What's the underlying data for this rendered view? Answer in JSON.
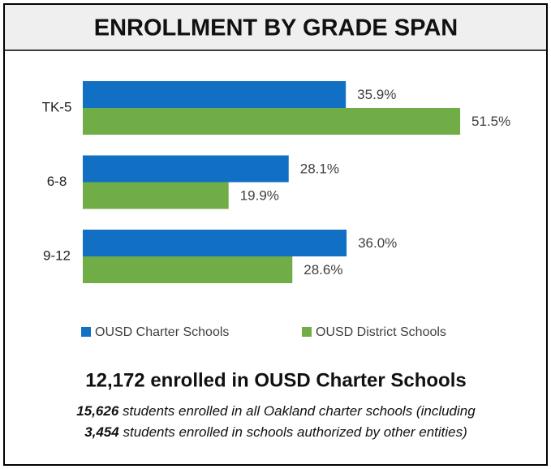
{
  "chart_data": {
    "type": "barh",
    "title": "ENROLLMENT BY GRADE SPAN",
    "categories": [
      "TK-5",
      "6-8",
      "9-12"
    ],
    "series": [
      {
        "name": "OUSD Charter Schools",
        "color": "#1170c4",
        "values": [
          35.9,
          28.1,
          36.0
        ],
        "value_labels": [
          "35.9%",
          "28.1%",
          "36.0%"
        ]
      },
      {
        "name": "OUSD District Schools",
        "color": "#70ad47",
        "values": [
          51.5,
          19.9,
          28.6
        ],
        "value_labels": [
          "51.5%",
          "19.9%",
          "28.6%"
        ]
      }
    ],
    "legend": "bottom",
    "headline": "12,172 enrolled in OUSD Charter Schools",
    "footnote": [
      {
        "emphasis": "15,626",
        "text": " students enrolled in all Oakland charter schools (including"
      },
      {
        "emphasis": "3,454",
        "text": " students enrolled in schools authorized by other entities)"
      }
    ]
  }
}
